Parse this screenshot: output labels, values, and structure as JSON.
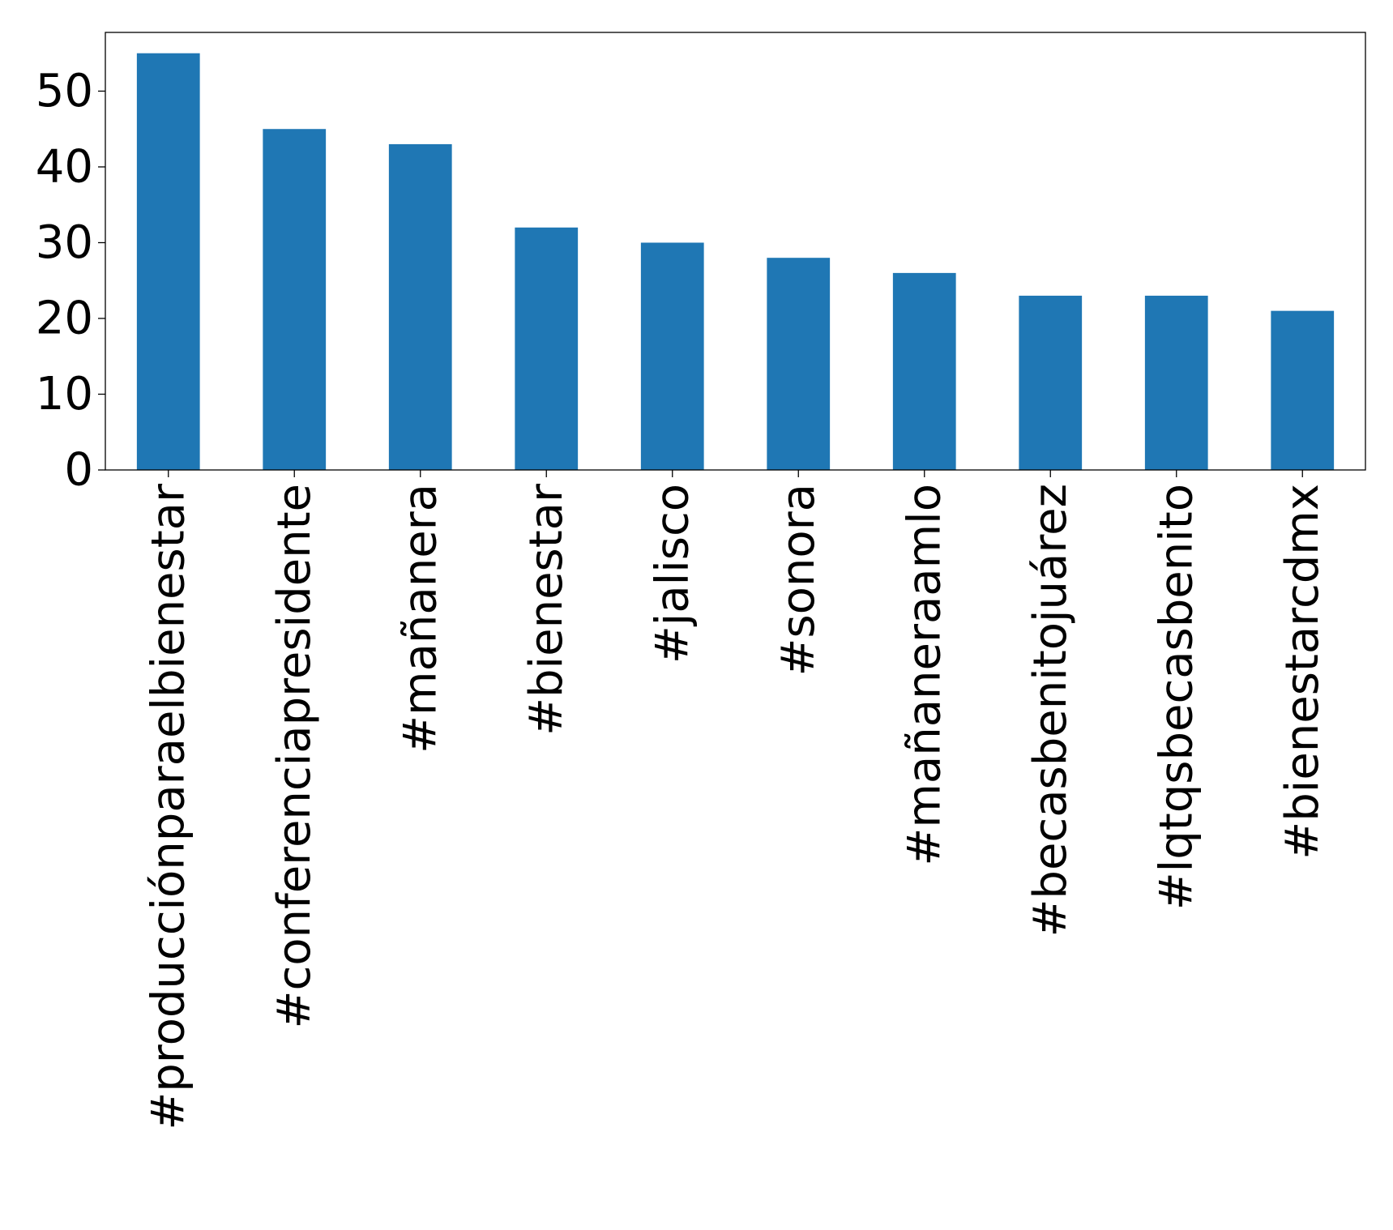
{
  "chart_data": {
    "type": "bar",
    "title": "",
    "xlabel": "",
    "ylabel": "",
    "categories": [
      "#producciónparaelbienestar",
      "#conferenciapresidente",
      "#mañanera",
      "#bienestar",
      "#jalisco",
      "#sonora",
      "#mañaneraamlo",
      "#becasbenitojuárez",
      "#lqtqsbecasbenito",
      "#bienestarcdmx"
    ],
    "values": [
      55,
      45,
      43,
      32,
      30,
      28,
      26,
      23,
      23,
      21
    ],
    "ylim": [
      0,
      57.75
    ],
    "yticks": [
      "0",
      "10",
      "20",
      "30",
      "40",
      "50"
    ],
    "bar_color": "#1f77b4",
    "grid": false,
    "legend": "none"
  }
}
